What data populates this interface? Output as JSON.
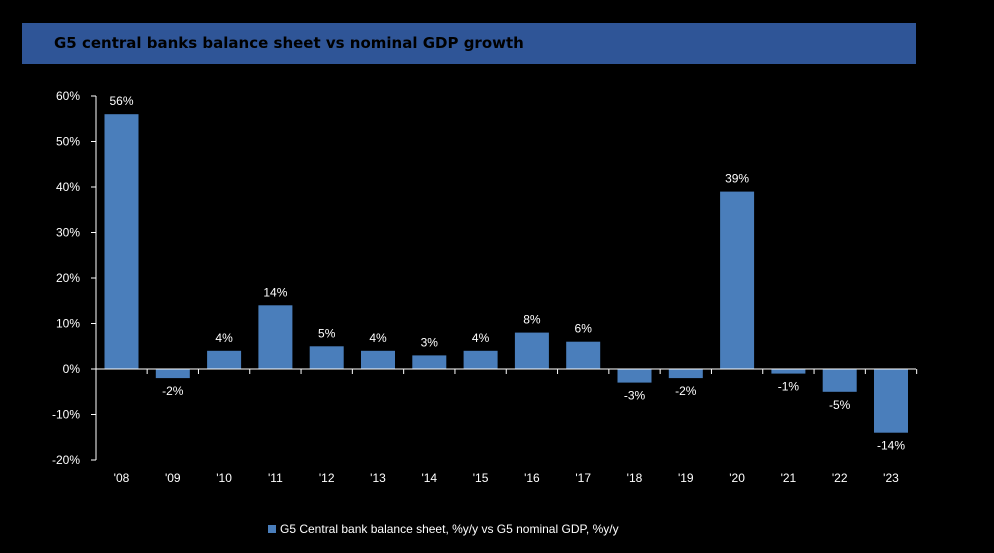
{
  "title": "G5 central banks balance sheet vs nominal GDP growth",
  "colors": {
    "background": "#000000",
    "title_bar": "#2f5597",
    "bar": "#4a7ebb",
    "text": "#ffffff",
    "axis": "#ffffff"
  },
  "chart_data": {
    "type": "bar",
    "title": "G5 central banks balance sheet vs nominal GDP growth",
    "xlabel": "",
    "ylabel": "",
    "categories": [
      "'08",
      "'09",
      "'10",
      "'11",
      "'12",
      "'13",
      "'14",
      "'15",
      "'16",
      "'17",
      "'18",
      "'19",
      "'20",
      "'21",
      "'22",
      "'23"
    ],
    "values": [
      56,
      -2,
      4,
      14,
      5,
      4,
      3,
      4,
      8,
      6,
      -3,
      -2,
      39,
      -1,
      -5,
      -14
    ],
    "value_labels": [
      "56%",
      "-2%",
      "4%",
      "14%",
      "5%",
      "4%",
      "3%",
      "4%",
      "8%",
      "6%",
      "-3%",
      "-2%",
      "39%",
      "-1%",
      "-5%",
      "-14%"
    ],
    "ylim": [
      -20,
      60
    ],
    "yticks": [
      60,
      50,
      40,
      30,
      20,
      10,
      0,
      -10,
      -20
    ],
    "ytick_labels": [
      "60%",
      "50%",
      "40%",
      "30%",
      "20%",
      "10%",
      "0%",
      "-10%",
      "-20%"
    ],
    "series": [
      {
        "name": "G5 Central bank balance sheet, %y/y vs G5 nominal GDP, %y/y",
        "values": [
          56,
          -2,
          4,
          14,
          5,
          4,
          3,
          4,
          8,
          6,
          -3,
          -2,
          39,
          -1,
          -5,
          -14
        ]
      }
    ],
    "grid": false,
    "legend_position": "bottom"
  }
}
